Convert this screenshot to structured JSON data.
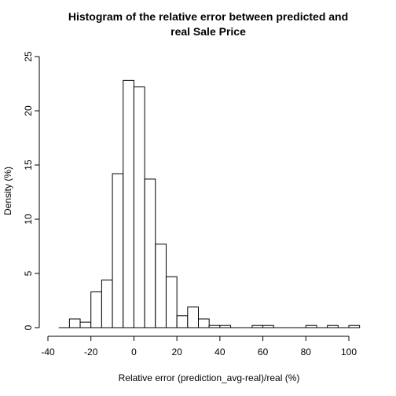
{
  "chart_data": {
    "type": "bar",
    "title_line1": "Histogram of the relative error between predicted and",
    "title_line2": "real Sale Price",
    "xlabel": "Relative error (prediction_avg-real)/real (%)",
    "ylabel": "Density (%)",
    "xlim": [
      -40,
      100
    ],
    "ylim": [
      0,
      25
    ],
    "x_ticks": [
      -40,
      -20,
      0,
      20,
      40,
      60,
      80,
      100
    ],
    "y_ticks": [
      0,
      5,
      10,
      15,
      20,
      25
    ],
    "bin_width": 5,
    "bins": [
      {
        "start": -35,
        "end": -30,
        "value": 0
      },
      {
        "start": -30,
        "end": -25,
        "value": 0.8
      },
      {
        "start": -25,
        "end": -20,
        "value": 0.5
      },
      {
        "start": -20,
        "end": -15,
        "value": 3.3
      },
      {
        "start": -15,
        "end": -10,
        "value": 4.4
      },
      {
        "start": -10,
        "end": -5,
        "value": 14.2
      },
      {
        "start": -5,
        "end": 0,
        "value": 22.8
      },
      {
        "start": 0,
        "end": 5,
        "value": 22.2
      },
      {
        "start": 5,
        "end": 10,
        "value": 13.7
      },
      {
        "start": 10,
        "end": 15,
        "value": 7.7
      },
      {
        "start": 15,
        "end": 20,
        "value": 4.7
      },
      {
        "start": 20,
        "end": 25,
        "value": 1.1
      },
      {
        "start": 25,
        "end": 30,
        "value": 1.9
      },
      {
        "start": 30,
        "end": 35,
        "value": 0.8
      },
      {
        "start": 35,
        "end": 40,
        "value": 0.2
      },
      {
        "start": 40,
        "end": 45,
        "value": 0.2
      },
      {
        "start": 45,
        "end": 50,
        "value": 0
      },
      {
        "start": 50,
        "end": 55,
        "value": 0
      },
      {
        "start": 55,
        "end": 60,
        "value": 0.2
      },
      {
        "start": 60,
        "end": 65,
        "value": 0.2
      },
      {
        "start": 65,
        "end": 70,
        "value": 0
      },
      {
        "start": 70,
        "end": 75,
        "value": 0
      },
      {
        "start": 75,
        "end": 80,
        "value": 0
      },
      {
        "start": 80,
        "end": 85,
        "value": 0.2
      },
      {
        "start": 85,
        "end": 90,
        "value": 0
      },
      {
        "start": 90,
        "end": 95,
        "value": 0.2
      },
      {
        "start": 95,
        "end": 100,
        "value": 0
      },
      {
        "start": 100,
        "end": 105,
        "value": 0.2
      }
    ],
    "grid": false
  }
}
